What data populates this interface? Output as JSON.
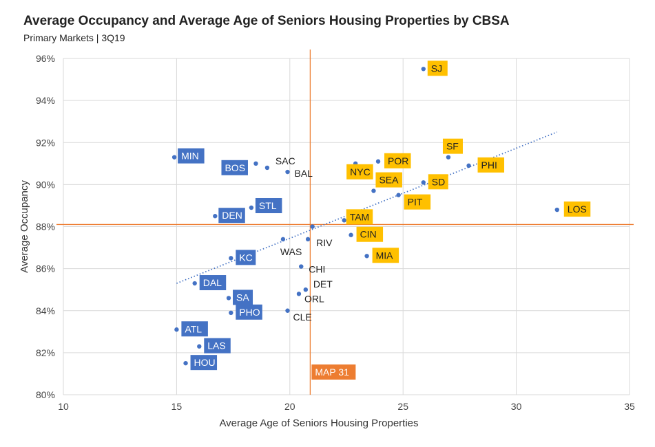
{
  "chart_data": {
    "type": "scatter",
    "title": "Average Occupancy and Average Age of Seniors Housing Properties by CBSA",
    "subtitle": "Primary Markets  | 3Q19",
    "xlabel": "Average Age of Seniors Housing Properties",
    "ylabel": "Average Occupancy",
    "xlim": [
      10,
      35
    ],
    "ylim": [
      80,
      96
    ],
    "x_ticks": [
      10,
      15,
      20,
      25,
      30,
      35
    ],
    "x_tick_labels": [
      "10",
      "15",
      "20",
      "25",
      "30",
      "35"
    ],
    "y_ticks": [
      80,
      82,
      84,
      86,
      88,
      90,
      92,
      94,
      96
    ],
    "y_tick_labels": [
      "80%",
      "82%",
      "84%",
      "86%",
      "88%",
      "90%",
      "92%",
      "94%",
      "96%"
    ],
    "grid": true,
    "reference_lines": {
      "vertical": {
        "x": 20.9,
        "label": "MAP 31"
      },
      "horizontal": {
        "y": 88.1
      }
    },
    "trendline": {
      "x_start": 15.0,
      "y_start": 85.3,
      "x_end": 31.8,
      "y_end": 92.5
    },
    "points": [
      {
        "label": "SJ",
        "x": 25.9,
        "y": 95.5,
        "style": "gold"
      },
      {
        "label": "SF",
        "x": 27.0,
        "y": 91.3,
        "style": "gold"
      },
      {
        "label": "PHI",
        "x": 27.9,
        "y": 90.9,
        "style": "gold"
      },
      {
        "label": "POR",
        "x": 23.9,
        "y": 91.1,
        "style": "gold"
      },
      {
        "label": "NYC",
        "x": 22.9,
        "y": 91.0,
        "style": "gold"
      },
      {
        "label": "SD",
        "x": 25.9,
        "y": 90.1,
        "style": "gold"
      },
      {
        "label": "SEA",
        "x": 23.7,
        "y": 89.7,
        "style": "gold"
      },
      {
        "label": "PIT",
        "x": 24.8,
        "y": 89.5,
        "style": "gold"
      },
      {
        "label": "LOS",
        "x": 31.8,
        "y": 88.8,
        "style": "gold"
      },
      {
        "label": "TAM",
        "x": 22.4,
        "y": 88.3,
        "style": "gold"
      },
      {
        "label": "CIN",
        "x": 22.7,
        "y": 87.6,
        "style": "gold"
      },
      {
        "label": "MIA",
        "x": 23.4,
        "y": 86.6,
        "style": "gold"
      },
      {
        "label": "MIN",
        "x": 14.9,
        "y": 91.3,
        "style": "blue"
      },
      {
        "label": "BOS",
        "x": 18.5,
        "y": 91.0,
        "style": "blue"
      },
      {
        "label": "SAC",
        "x": 19.0,
        "y": 90.8,
        "style": "plain"
      },
      {
        "label": "BAL",
        "x": 19.9,
        "y": 90.6,
        "style": "plain"
      },
      {
        "label": "STL",
        "x": 18.3,
        "y": 88.9,
        "style": "blue"
      },
      {
        "label": "DEN",
        "x": 16.7,
        "y": 88.5,
        "style": "blue"
      },
      {
        "label": "WAS",
        "x": 19.7,
        "y": 87.4,
        "style": "plain"
      },
      {
        "label": "RIV",
        "x": 20.8,
        "y": 87.4,
        "style": "plain"
      },
      {
        "label": "MAP",
        "x": 21.0,
        "y": 88.0,
        "style": "none"
      },
      {
        "label": "KC",
        "x": 17.4,
        "y": 86.5,
        "style": "blue"
      },
      {
        "label": "CHI",
        "x": 20.5,
        "y": 86.1,
        "style": "plain"
      },
      {
        "label": "DAL",
        "x": 15.8,
        "y": 85.3,
        "style": "blue"
      },
      {
        "label": "DET",
        "x": 20.7,
        "y": 85.0,
        "style": "plain"
      },
      {
        "label": "ORL",
        "x": 20.4,
        "y": 84.8,
        "style": "plain"
      },
      {
        "label": "SA",
        "x": 17.3,
        "y": 84.6,
        "style": "blue"
      },
      {
        "label": "PHO",
        "x": 17.4,
        "y": 83.9,
        "style": "blue"
      },
      {
        "label": "CLE",
        "x": 19.9,
        "y": 84.0,
        "style": "plain"
      },
      {
        "label": "ATL",
        "x": 15.0,
        "y": 83.1,
        "style": "blue"
      },
      {
        "label": "LAS",
        "x": 16.0,
        "y": 82.3,
        "style": "blue"
      },
      {
        "label": "HOU",
        "x": 15.4,
        "y": 81.5,
        "style": "blue"
      }
    ]
  },
  "colors": {
    "point": "#4472c4",
    "blue_label_bg": "#4472c4",
    "blue_label_text": "#ffffff",
    "gold_label_bg": "#ffc000",
    "gold_label_text": "#222222",
    "reference_line": "#ed7d31",
    "map_label_bg": "#ed7d31",
    "map_label_text": "#ffffff",
    "grid": "#d9d9d9",
    "trendline": "#4472c4"
  }
}
